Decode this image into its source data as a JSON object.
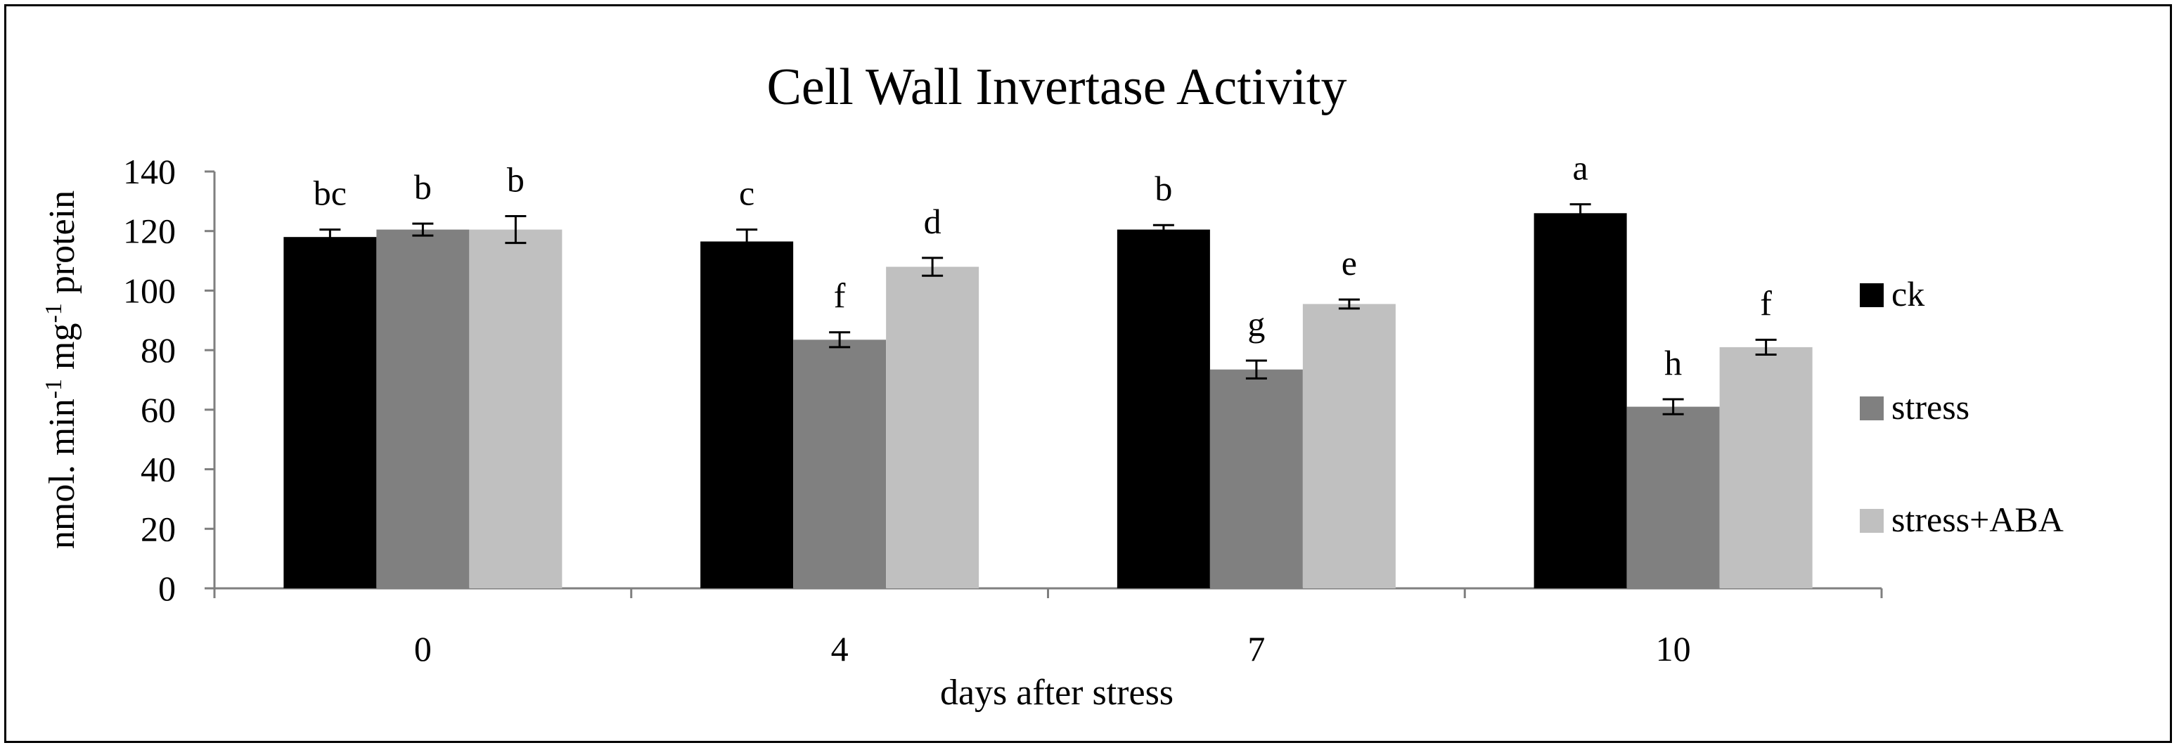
{
  "chart_data": {
    "type": "bar",
    "title": "Cell Wall Invertase Activity",
    "xlabel": "days after stress",
    "ylabel": {
      "prefix": "nmol. min",
      "exp1": "-1",
      "mid": " mg",
      "exp2": "-1",
      "suffix": " protein"
    },
    "ylim": [
      0,
      140
    ],
    "yticks": [
      "0",
      "20",
      "40",
      "60",
      "80",
      "100",
      "120",
      "140"
    ],
    "ytick_values": [
      0,
      20,
      40,
      60,
      80,
      100,
      120,
      140
    ],
    "categories": [
      "0",
      "4",
      "7",
      "10"
    ],
    "legend_position": "right",
    "grid": false,
    "series": [
      {
        "name": "ck",
        "color": "#000000",
        "values": [
          118,
          116.5,
          120.5,
          126
        ],
        "errors": [
          2.5,
          4,
          1.5,
          3
        ],
        "letters": [
          "bc",
          "c",
          "b",
          "a"
        ]
      },
      {
        "name": "stress",
        "color": "#808080",
        "values": [
          120.5,
          83.5,
          73.5,
          61
        ],
        "errors": [
          2,
          2.5,
          3,
          2.5
        ],
        "letters": [
          "b",
          "f",
          "g",
          "h"
        ]
      },
      {
        "name": "stress+ABA",
        "color": "#c0c0c0",
        "values": [
          120.5,
          108,
          95.5,
          81
        ],
        "errors": [
          4.5,
          3,
          1.5,
          2.5
        ],
        "letters": [
          "b",
          "d",
          "e",
          "f"
        ]
      }
    ]
  }
}
